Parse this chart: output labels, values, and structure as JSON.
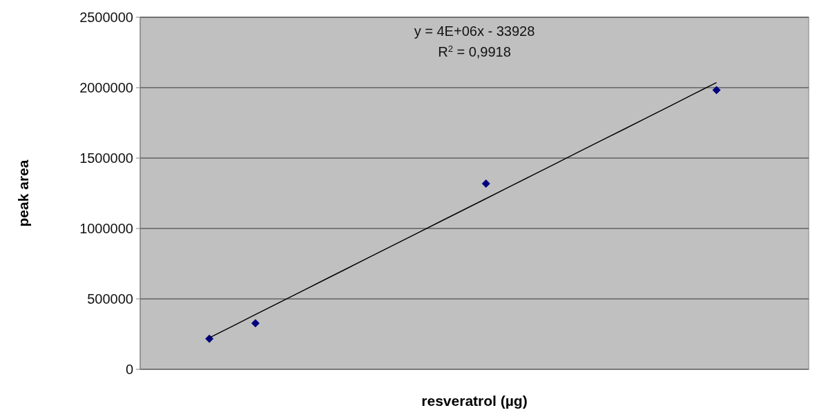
{
  "chart_data": {
    "type": "scatter",
    "xlabel": "resveratrol (µg)",
    "ylabel": "peak area",
    "annotations": [
      "y = 4E+06x - 33928",
      "R$^{2}$ = 0,9918"
    ],
    "categories": [
      null,
      null,
      null,
      null,
      null,
      null,
      null,
      null,
      null,
      null,
      null,
      null,
      null,
      null,
      null,
      null,
      null,
      null,
      null,
      null,
      null,
      null,
      null,
      null,
      null,
      null,
      null,
      null,
      null
    ],
    "ylim": [
      0,
      2500000
    ],
    "yticks": [
      0,
      500000,
      1000000,
      1500000,
      2000000,
      2500000
    ],
    "grid": "y",
    "marker": "diamond",
    "series": [
      {
        "color": "#000080",
        "values": [
          null,
          null,
          217000,
          null,
          327000,
          null,
          null,
          null,
          null,
          null,
          null,
          null,
          null,
          null,
          1319000,
          null,
          null,
          null,
          null,
          null,
          null,
          null,
          null,
          null,
          1983000,
          null,
          null,
          null,
          null
        ]
      },
      {
        "type": "line",
        "color": "#000000",
        "line_style": "solid",
        "marker": "none",
        "values": [
          null,
          null,
          224000,
          306000,
          389000,
          471000,
          553000,
          636000,
          718000,
          801000,
          883000,
          965000,
          1048000,
          1130000,
          1212000,
          1295000,
          1377000,
          1459000,
          1542000,
          1624000,
          1706000,
          1789000,
          1871000,
          1954000,
          2036000,
          null,
          null,
          null,
          null
        ]
      }
    ]
  }
}
